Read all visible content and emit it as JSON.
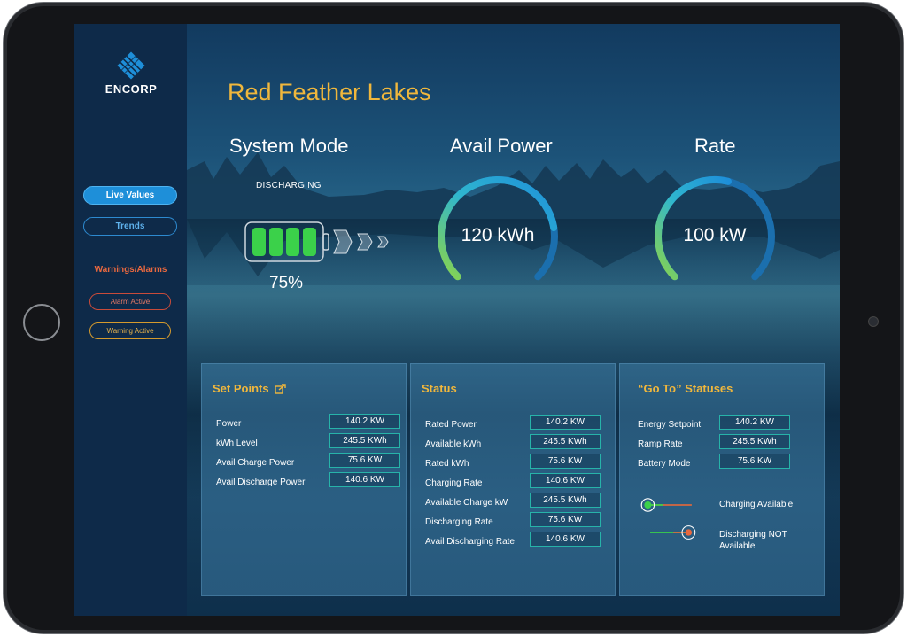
{
  "app": {
    "logo_text": "ENCORP"
  },
  "sidebar": {
    "nav": [
      {
        "label": "Live Values",
        "active": true
      },
      {
        "label": "Trends",
        "active": false
      }
    ],
    "warnings_title": "Warnings/Alarms",
    "alarm_buttons": [
      {
        "label": "Alarm Active",
        "color": "#c94b3a"
      },
      {
        "label": "Warning Active",
        "color": "#d49a2d"
      }
    ]
  },
  "header": {
    "site_title": "Red Feather Lakes"
  },
  "system_mode": {
    "title": "System Mode",
    "status": "DISCHARGING",
    "battery_percent": "75%",
    "battery_level": 0.75
  },
  "avail_power": {
    "title": "Avail Power",
    "value": "120 kWh",
    "fill": 0.8
  },
  "rate": {
    "title": "Rate",
    "value": "100 kW",
    "fill": 0.55
  },
  "set_points": {
    "title": "Set Points",
    "icon": "external-link-icon",
    "rows": [
      {
        "label": "Power",
        "value": "140.2 KW"
      },
      {
        "label": "kWh Level",
        "value": "245.5 KWh"
      },
      {
        "label": "Avail Charge Power",
        "value": "75.6 KW"
      },
      {
        "label": "Avail Discharge Power",
        "value": "140.6 KW"
      }
    ]
  },
  "status": {
    "title": "Status",
    "rows": [
      {
        "label": "Rated Power",
        "value": "140.2 KW"
      },
      {
        "label": "Available kWh",
        "value": "245.5 KWh"
      },
      {
        "label": "Rated kWh",
        "value": "75.6 KW"
      },
      {
        "label": "Charging Rate",
        "value": "140.6 KW"
      },
      {
        "label": "Available Charge kW",
        "value": "245.5 KWh"
      },
      {
        "label": "Discharging Rate",
        "value": "75.6 KW"
      },
      {
        "label": "Avail Discharging Rate",
        "value": "140.6 KW"
      }
    ]
  },
  "goto_statuses": {
    "title": "“Go To” Statuses",
    "rows": [
      {
        "label": "Energy Setpoint",
        "value": "140.2 KW"
      },
      {
        "label": "Ramp Rate",
        "value": "245.5 KWh"
      },
      {
        "label": "Battery Mode",
        "value": "75.6 KW"
      }
    ],
    "toggles": [
      {
        "label_line1": "Charging Available",
        "label_line2": "",
        "state": "charging"
      },
      {
        "label_line1": "Discharging NOT",
        "label_line2": "Available",
        "state": "discharging"
      }
    ]
  },
  "colors": {
    "accent_gold": "#f0b73c",
    "accent_blue": "#1e8fd9",
    "green": "#35c14a",
    "alert_red": "#e8683f"
  }
}
